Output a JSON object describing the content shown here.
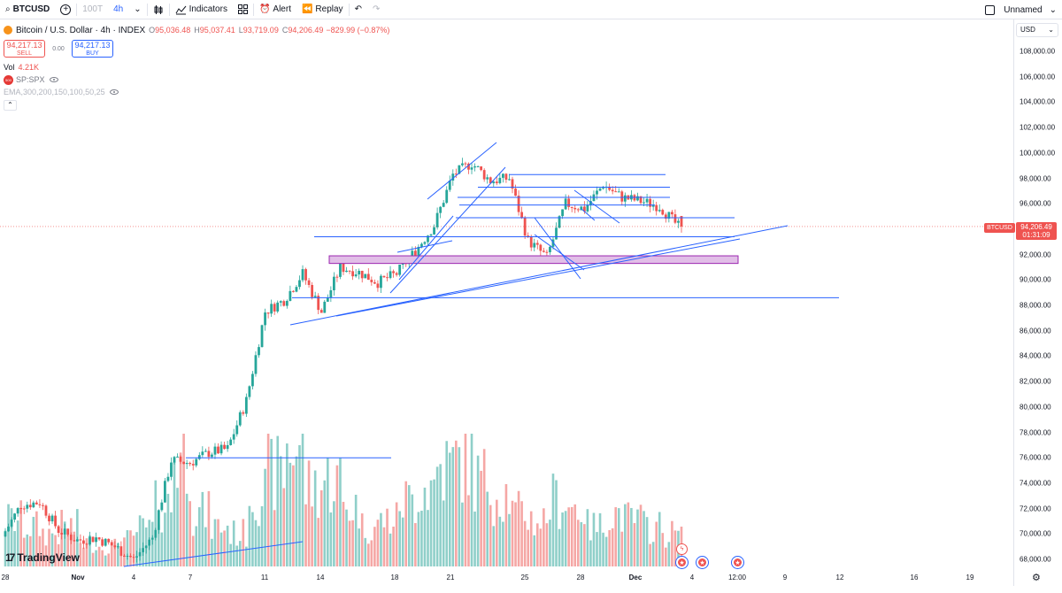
{
  "toolbar": {
    "symbol": "BTCUSD",
    "add_label": "+",
    "interval_muted": "100T",
    "interval": "4h",
    "indicators_label": "Indicators",
    "alert_label": "Alert",
    "replay_label": "Replay",
    "undo_label": "↶",
    "redo_label": "↷",
    "layout_name": "Unnamed",
    "layout_chevron": "⌄"
  },
  "legend": {
    "title": "Bitcoin / U.S. Dollar · 4h · INDEX",
    "ohlc": {
      "o_label": "O",
      "o": "95,036.48",
      "h_label": "H",
      "h": "95,037.41",
      "l_label": "L",
      "l": "93,719.09",
      "c_label": "C",
      "c": "94,206.49",
      "change": "−829.99 (−0.87%)"
    },
    "sell_price": "94,217.13",
    "sell_label": "SELL",
    "spread": "0.00",
    "buy_price": "94,217.13",
    "buy_label": "BUY",
    "vol_label": "Vol",
    "vol_value": "4.21K",
    "spx_badge": "500",
    "spx_label": "SP:SPX",
    "ema_label": "EMA,300,200,150,100,50,25",
    "collapse_label": "⌃"
  },
  "price_scale": {
    "currency": "USD",
    "currency_arrow": "⌄",
    "labels": [
      "108,000.00",
      "106,000.00",
      "104,000.00",
      "102,000.00",
      "100,000.00",
      "98,000.00",
      "96,000.00",
      "94,000.00",
      "92,000.00",
      "90,000.00",
      "88,000.00",
      "86,000.00",
      "84,000.00",
      "82,000.00",
      "80,000.00",
      "78,000.00",
      "76,000.00",
      "74,000.00",
      "72,000.00",
      "70,000.00",
      "68,000.00"
    ],
    "current_price": "94,206.49",
    "countdown": "01:31:09",
    "symbol_tag": "BTCUSD"
  },
  "time_axis": {
    "labels": [
      {
        "text": "28",
        "bold": false
      },
      {
        "text": "Nov",
        "bold": true
      },
      {
        "text": "4",
        "bold": false
      },
      {
        "text": "7",
        "bold": false
      },
      {
        "text": "11",
        "bold": false
      },
      {
        "text": "14",
        "bold": false
      },
      {
        "text": "18",
        "bold": false
      },
      {
        "text": "21",
        "bold": false
      },
      {
        "text": "25",
        "bold": false
      },
      {
        "text": "28",
        "bold": false
      },
      {
        "text": "Dec",
        "bold": true
      },
      {
        "text": "4",
        "bold": false
      },
      {
        "text": "12:00",
        "bold": false
      },
      {
        "text": "9",
        "bold": false
      },
      {
        "text": "12",
        "bold": false
      },
      {
        "text": "16",
        "bold": false
      },
      {
        "text": "19",
        "bold": false
      }
    ],
    "settings_icon": "gear-icon"
  },
  "logo": {
    "text": "TradingView",
    "mark": "17"
  },
  "events": {
    "flash_icon": "lightning-icon",
    "flash_glyph": "ϟ",
    "us_icon": "us-flag-icon",
    "us_glyph": "★"
  },
  "colors": {
    "up": "#26a69a",
    "down": "#ef5350",
    "up_vol": "#8fcfc9",
    "down_vol": "#f5a7a5",
    "drawing": "#2962ff",
    "zone_fill": "#e1bee7",
    "zone_border": "#9c27b0"
  },
  "chart_data": {
    "type": "candlestick",
    "symbol": "BTCUSD",
    "interval": "4h",
    "y_range": [
      67500,
      109000
    ],
    "x_range": [
      "Oct 28",
      "Dec 19"
    ],
    "grid": false,
    "current_price": 94206.49,
    "last_ohlc": {
      "open": 95036.48,
      "high": 95037.41,
      "low": 93719.09,
      "close": 94206.49
    },
    "close_path": [
      {
        "date": "Oct 28",
        "close": 69800
      },
      {
        "date": "Oct 29",
        "close": 72300
      },
      {
        "date": "Oct 30",
        "close": 72500
      },
      {
        "date": "Oct 31",
        "close": 70300
      },
      {
        "date": "Nov 1",
        "close": 69500
      },
      {
        "date": "Nov 2",
        "close": 69700
      },
      {
        "date": "Nov 3",
        "close": 69000
      },
      {
        "date": "Nov 4",
        "close": 68000
      },
      {
        "date": "Nov 5",
        "close": 69700
      },
      {
        "date": "Nov 6",
        "close": 75800
      },
      {
        "date": "Nov 7",
        "close": 75600
      },
      {
        "date": "Nov 8",
        "close": 76400
      },
      {
        "date": "Nov 9",
        "close": 76700
      },
      {
        "date": "Nov 10",
        "close": 80500
      },
      {
        "date": "Nov 11",
        "close": 87500
      },
      {
        "date": "Nov 12",
        "close": 88400
      },
      {
        "date": "Nov 13",
        "close": 90500
      },
      {
        "date": "Nov 14",
        "close": 87500
      },
      {
        "date": "Nov 15",
        "close": 91000
      },
      {
        "date": "Nov 16",
        "close": 90600
      },
      {
        "date": "Nov 17",
        "close": 89800
      },
      {
        "date": "Nov 18",
        "close": 90500
      },
      {
        "date": "Nov 19",
        "close": 92300
      },
      {
        "date": "Nov 20",
        "close": 94300
      },
      {
        "date": "Nov 21",
        "close": 98300
      },
      {
        "date": "Nov 22",
        "close": 99200
      },
      {
        "date": "Nov 23",
        "close": 97800
      },
      {
        "date": "Nov 24",
        "close": 98000
      },
      {
        "date": "Nov 25",
        "close": 93100
      },
      {
        "date": "Nov 26",
        "close": 91800
      },
      {
        "date": "Nov 27",
        "close": 96000
      },
      {
        "date": "Nov 28",
        "close": 95600
      },
      {
        "date": "Nov 29",
        "close": 97500
      },
      {
        "date": "Nov 30",
        "close": 96500
      },
      {
        "date": "Dec 1",
        "close": 96200
      },
      {
        "date": "Dec 2",
        "close": 95800
      },
      {
        "date": "Dec 3",
        "close": 94206.49
      }
    ],
    "volume_relative": [
      0.35,
      0.3,
      0.25,
      0.3,
      0.18,
      0.15,
      0.2,
      0.28,
      0.45,
      0.85,
      0.4,
      0.3,
      0.25,
      0.55,
      0.7,
      0.9,
      0.6,
      0.65,
      0.45,
      0.3,
      0.35,
      0.5,
      0.6,
      0.75,
      0.8,
      0.65,
      0.55,
      0.4,
      0.35,
      0.5,
      0.45,
      0.3,
      0.4,
      0.35,
      0.3,
      0.25,
      0.3
    ],
    "horizontal_levels": [
      98300,
      97300,
      96500,
      95900,
      94900,
      93400,
      88600,
      76000
    ],
    "zone": [
      91300,
      91900
    ]
  }
}
